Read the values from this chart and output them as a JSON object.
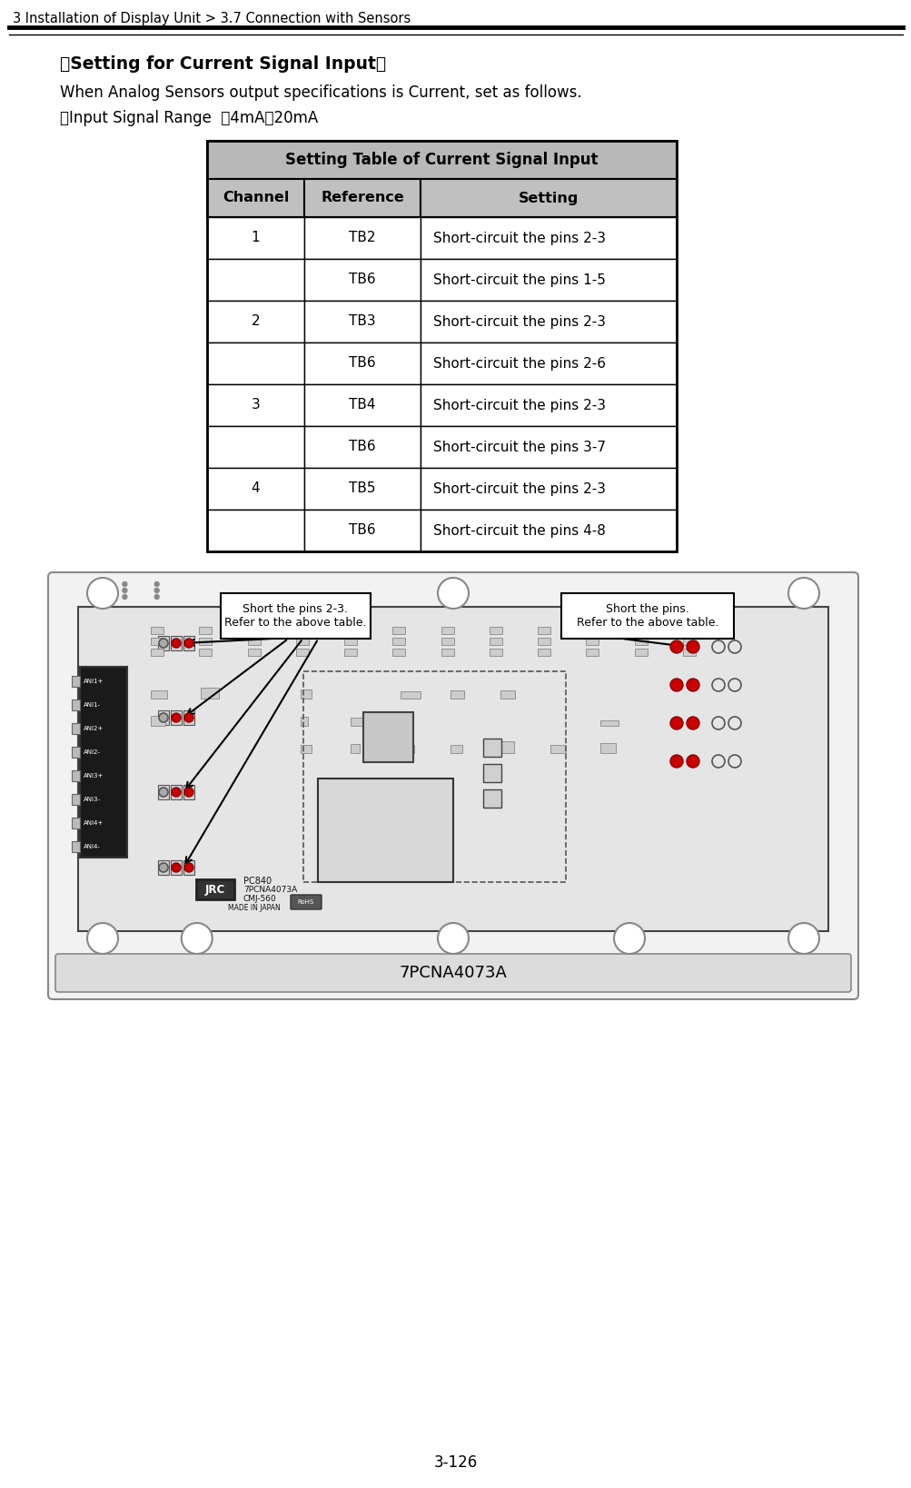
{
  "page_header": "3 Installation of Display Unit > 3.7 Connection with Sensors",
  "page_number": "3-126",
  "section_title": "【Setting for Current Signal Input】",
  "para1": "When Analog Sensors output specifications is Current, set as follows.",
  "para2": "・Input Signal Range  ：4mA～20mA",
  "table_title": "Setting Table of Current Signal Input",
  "table_headers": [
    "Channel",
    "Reference",
    "Setting"
  ],
  "table_data": [
    [
      "1",
      "TB2",
      "Short-circuit the pins 2-3"
    ],
    [
      "",
      "TB6",
      "Short-circuit the pins 1-5"
    ],
    [
      "2",
      "TB3",
      "Short-circuit the pins 2-3"
    ],
    [
      "",
      "TB6",
      "Short-circuit the pins 2-6"
    ],
    [
      "3",
      "TB4",
      "Short-circuit the pins 2-3"
    ],
    [
      "",
      "TB6",
      "Short-circuit the pins 3-7"
    ],
    [
      "4",
      "TB5",
      "Short-circuit the pins 2-3"
    ],
    [
      "",
      "TB6",
      "Short-circuit the pins 4-8"
    ]
  ],
  "callout1_text": "Short the pins 2-3.\nRefer to the above table.",
  "callout2_text": "Short the pins.\nRefer to the above table.",
  "bg_color": "#ffffff",
  "table_title_bg": "#b8b8b8",
  "header_bg": "#c0c0c0"
}
